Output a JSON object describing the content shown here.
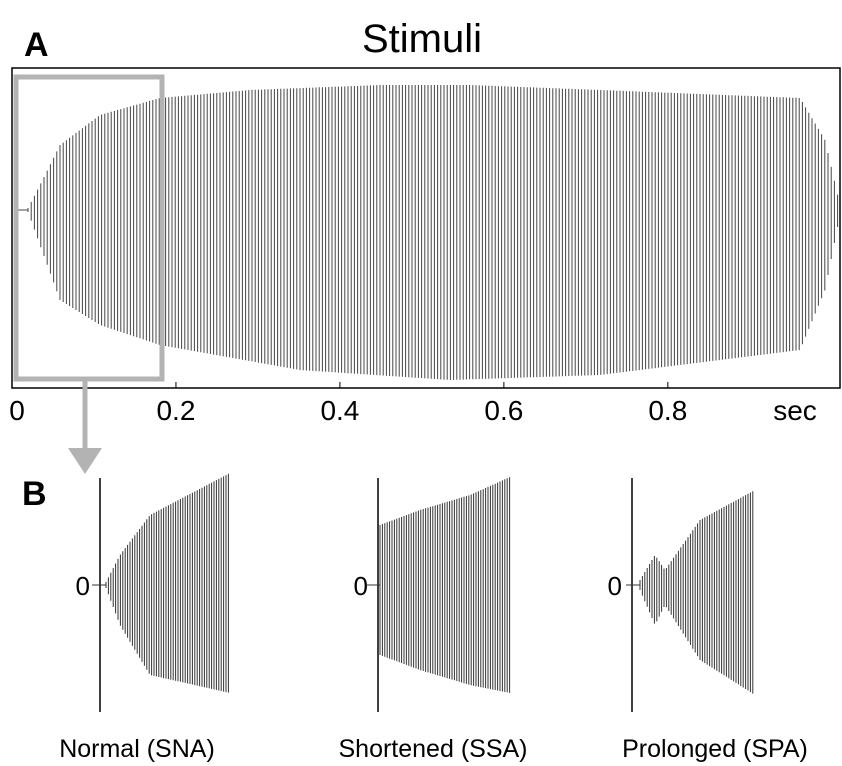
{
  "panel_a": {
    "label": "A",
    "title": "Stimuli",
    "xlim": [
      0,
      1.01
    ],
    "xticks": [
      0,
      0.2,
      0.4,
      0.6,
      0.8
    ],
    "x_unit": "sec"
  },
  "panel_b": {
    "label": "B",
    "panels": [
      {
        "zero_label": "0",
        "caption": "Normal (SNA)"
      },
      {
        "zero_label": "0",
        "caption": "Shortened (SSA)"
      },
      {
        "zero_label": "0",
        "caption": "Prolonged (SPA)"
      }
    ]
  }
}
